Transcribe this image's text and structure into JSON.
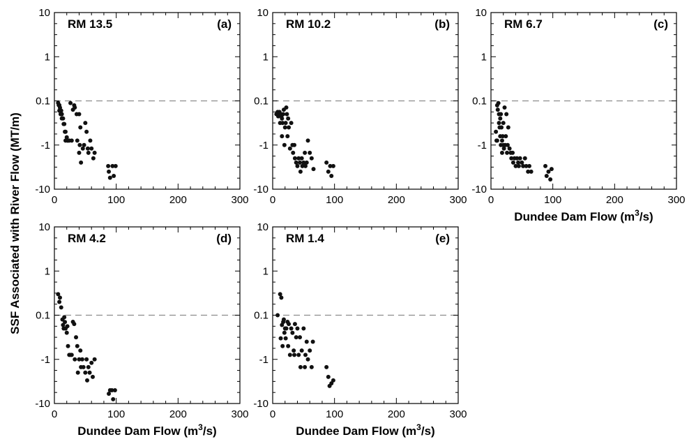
{
  "figure": {
    "ylabel": "SSF Associated with River Flow (MT/m)",
    "xlabel_main": "Dundee Dam Flow (m",
    "xlabel_sup": "3",
    "xlabel_tail": "/s)"
  },
  "chart_data": [
    {
      "type": "scatter",
      "site": "RM 13.5",
      "letter": "(a)",
      "xlim": [
        0,
        300
      ],
      "x_ticks": [
        "0",
        "100",
        "200",
        "300"
      ],
      "y_ticks": [
        "10",
        "1",
        "0.1",
        "-1",
        "-10"
      ],
      "y_scale": "symmetric log (10, 1, 0.1, -1, -10)",
      "reference_line": "dashed at 0.1",
      "show_xlabel": false,
      "points": [
        [
          6,
          0.09
        ],
        [
          7,
          0.08
        ],
        [
          8,
          0.08
        ],
        [
          8,
          0.06
        ],
        [
          9,
          0.07
        ],
        [
          10,
          0.05
        ],
        [
          10,
          0.06
        ],
        [
          11,
          0.06
        ],
        [
          12,
          0.04
        ],
        [
          12,
          0.05
        ],
        [
          13,
          0.04
        ],
        [
          14,
          0.04
        ],
        [
          15,
          0.03
        ],
        [
          16,
          0.03
        ],
        [
          17,
          0.02
        ],
        [
          18,
          0.02
        ],
        [
          18,
          0.01
        ],
        [
          20,
          0.015
        ],
        [
          21,
          0.01
        ],
        [
          22,
          0.01
        ],
        [
          24,
          0.005
        ],
        [
          26,
          -0.05
        ],
        [
          28,
          0.003
        ],
        [
          30,
          -0.2
        ],
        [
          32,
          -0.1
        ],
        [
          33,
          -0.15
        ],
        [
          36,
          -0.3
        ],
        [
          37,
          -0.9
        ],
        [
          40,
          -0.3
        ],
        [
          40,
          -1.5
        ],
        [
          41,
          -1.0
        ],
        [
          42,
          -0.6
        ],
        [
          43,
          -2.5
        ],
        [
          46,
          -1.2
        ],
        [
          48,
          -1.0
        ],
        [
          50,
          -0.5
        ],
        [
          52,
          -0.7
        ],
        [
          54,
          -1.2
        ],
        [
          55,
          -1.5
        ],
        [
          58,
          -0.9
        ],
        [
          60,
          -1.2
        ],
        [
          63,
          -2.0
        ],
        [
          65,
          -1.5
        ],
        [
          87,
          -3.0
        ],
        [
          88,
          -4.0
        ],
        [
          90,
          -5.5
        ],
        [
          94,
          -3.0
        ],
        [
          96,
          -5.0
        ],
        [
          99,
          -3.0
        ]
      ]
    },
    {
      "type": "scatter",
      "site": "RM 10.2",
      "letter": "(b)",
      "xlim": [
        0,
        300
      ],
      "x_ticks": [
        "0",
        "100",
        "200",
        "300"
      ],
      "y_ticks": [
        "10",
        "1",
        "0.1",
        "-1",
        "-10"
      ],
      "y_scale": "symmetric log (10, 1, 0.1, -1, -10)",
      "reference_line": "dashed at 0.1",
      "show_xlabel": false,
      "points": [
        [
          6,
          -0.3
        ],
        [
          7,
          -0.3
        ],
        [
          8,
          -0.25
        ],
        [
          9,
          -0.35
        ],
        [
          10,
          -0.3
        ],
        [
          11,
          -0.25
        ],
        [
          12,
          -0.3
        ],
        [
          12,
          -0.5
        ],
        [
          13,
          -0.3
        ],
        [
          14,
          -0.35
        ],
        [
          15,
          -0.4
        ],
        [
          15,
          -0.8
        ],
        [
          16,
          -0.5
        ],
        [
          17,
          -0.3
        ],
        [
          18,
          -0.2
        ],
        [
          19,
          -1.0
        ],
        [
          20,
          -0.6
        ],
        [
          21,
          -0.5
        ],
        [
          22,
          -0.15
        ],
        [
          23,
          -0.3
        ],
        [
          24,
          -0.8
        ],
        [
          25,
          -0.4
        ],
        [
          26,
          -0.6
        ],
        [
          28,
          -1.2
        ],
        [
          30,
          -0.5
        ],
        [
          32,
          -1.0
        ],
        [
          33,
          -1.5
        ],
        [
          35,
          -1.0
        ],
        [
          36,
          -2.0
        ],
        [
          38,
          -2.5
        ],
        [
          40,
          -3.0
        ],
        [
          42,
          -2.0
        ],
        [
          44,
          -2.5
        ],
        [
          45,
          -4.0
        ],
        [
          47,
          -2.0
        ],
        [
          48,
          -3.0
        ],
        [
          50,
          -2.5
        ],
        [
          52,
          -1.5
        ],
        [
          53,
          -3.0
        ],
        [
          55,
          -2.5
        ],
        [
          57,
          -0.9
        ],
        [
          60,
          -1.5
        ],
        [
          63,
          -2.0
        ],
        [
          66,
          -3.5
        ],
        [
          87,
          -2.5
        ],
        [
          90,
          -4.0
        ],
        [
          93,
          -3.0
        ],
        [
          95,
          -5.0
        ],
        [
          98,
          -3.0
        ]
      ]
    },
    {
      "type": "scatter",
      "site": "RM 6.7",
      "letter": "(c)",
      "xlim": [
        0,
        300
      ],
      "x_ticks": [
        "0",
        "100",
        "200",
        "300"
      ],
      "y_ticks": [
        "10",
        "1",
        "0.1",
        "-1",
        "-10"
      ],
      "y_scale": "symmetric log (10, 1, 0.1, -1, -10)",
      "reference_line": "dashed at 0.1",
      "show_xlabel": true,
      "points": [
        [
          8,
          0.02
        ],
        [
          9,
          0.01
        ],
        [
          10,
          0.005
        ],
        [
          10,
          -0.1
        ],
        [
          11,
          -0.2
        ],
        [
          12,
          -0.05
        ],
        [
          13,
          -0.3
        ],
        [
          13,
          -0.5
        ],
        [
          14,
          -0.6
        ],
        [
          15,
          -0.4
        ],
        [
          15,
          -0.8
        ],
        [
          16,
          -0.3
        ],
        [
          16,
          -1.0
        ],
        [
          17,
          -0.6
        ],
        [
          18,
          -0.9
        ],
        [
          18,
          -1.5
        ],
        [
          19,
          -0.8
        ],
        [
          20,
          -1.0
        ],
        [
          20,
          -0.5
        ],
        [
          21,
          -1.2
        ],
        [
          22,
          -0.15
        ],
        [
          23,
          -1.0
        ],
        [
          24,
          -0.8
        ],
        [
          25,
          -0.3
        ],
        [
          26,
          -1.5
        ],
        [
          27,
          -1.0
        ],
        [
          28,
          -0.6
        ],
        [
          30,
          -1.2
        ],
        [
          32,
          -1.5
        ],
        [
          33,
          -2.0
        ],
        [
          35,
          -1.5
        ],
        [
          36,
          -2.5
        ],
        [
          38,
          -2.0
        ],
        [
          40,
          -3.0
        ],
        [
          42,
          -2.0
        ],
        [
          44,
          -2.5
        ],
        [
          45,
          -3.0
        ],
        [
          47,
          -2.0
        ],
        [
          50,
          -2.5
        ],
        [
          52,
          -3.0
        ],
        [
          55,
          -2.0
        ],
        [
          57,
          -3.0
        ],
        [
          60,
          -4.0
        ],
        [
          62,
          -3.0
        ],
        [
          65,
          -4.0
        ],
        [
          88,
          -3.0
        ],
        [
          90,
          -5.0
        ],
        [
          93,
          -4.0
        ],
        [
          96,
          -6.0
        ],
        [
          98,
          -3.5
        ]
      ]
    },
    {
      "type": "scatter",
      "site": "RM 4.2",
      "letter": "(d)",
      "xlim": [
        0,
        300
      ],
      "x_ticks": [
        "0",
        "100",
        "200",
        "300"
      ],
      "y_ticks": [
        "10",
        "1",
        "0.1",
        "-1",
        "-10"
      ],
      "y_scale": "symmetric log (10, 1, 0.1, -1, -10)",
      "reference_line": "dashed at 0.1",
      "show_xlabel": true,
      "points": [
        [
          6,
          0.3
        ],
        [
          8,
          0.2
        ],
        [
          9,
          0.25
        ],
        [
          11,
          0.15
        ],
        [
          13,
          0.08
        ],
        [
          14,
          0.06
        ],
        [
          15,
          0.05
        ],
        [
          16,
          0.09
        ],
        [
          17,
          0.07
        ],
        [
          18,
          -0.3
        ],
        [
          18,
          0.05
        ],
        [
          20,
          0.04
        ],
        [
          21,
          -0.25
        ],
        [
          22,
          0.02
        ],
        [
          24,
          0.01
        ],
        [
          26,
          0.01
        ],
        [
          28,
          0.005
        ],
        [
          30,
          -0.15
        ],
        [
          32,
          -0.2
        ],
        [
          33,
          -1.0
        ],
        [
          35,
          -0.5
        ],
        [
          37,
          -0.7
        ],
        [
          38,
          -2.0
        ],
        [
          40,
          -1.0
        ],
        [
          42,
          -0.8
        ],
        [
          43,
          -1.5
        ],
        [
          45,
          -1.0
        ],
        [
          47,
          -1.5
        ],
        [
          50,
          -2.0
        ],
        [
          52,
          -1.0
        ],
        [
          53,
          -3.0
        ],
        [
          55,
          -1.5
        ],
        [
          57,
          -2.0
        ],
        [
          60,
          -1.2
        ],
        [
          62,
          -2.5
        ],
        [
          65,
          -1.0
        ],
        [
          88,
          -6.0
        ],
        [
          90,
          -5.0
        ],
        [
          93,
          -5.0
        ],
        [
          95,
          -8.0
        ],
        [
          98,
          -5.0
        ]
      ]
    },
    {
      "type": "scatter",
      "site": "RM 1.4",
      "letter": "(e)",
      "xlim": [
        0,
        300
      ],
      "x_ticks": [
        "0",
        "100",
        "200",
        "300"
      ],
      "y_ticks": [
        "10",
        "1",
        "0.1",
        "-1",
        "-10"
      ],
      "y_scale": "symmetric log (10, 1, 0.1, -1, -10)",
      "reference_line": "dashed at 0.1",
      "show_xlabel": true,
      "points": [
        [
          8,
          0.1
        ],
        [
          12,
          0.3
        ],
        [
          13,
          0.03
        ],
        [
          14,
          0.25
        ],
        [
          15,
          0.06
        ],
        [
          16,
          0.02
        ],
        [
          17,
          0.07
        ],
        [
          18,
          0.08
        ],
        [
          19,
          0.04
        ],
        [
          20,
          0.05
        ],
        [
          21,
          0.03
        ],
        [
          22,
          -0.3
        ],
        [
          24,
          -0.15
        ],
        [
          25,
          0.02
        ],
        [
          26,
          -0.2
        ],
        [
          28,
          0.01
        ],
        [
          30,
          -0.3
        ],
        [
          32,
          -0.4
        ],
        [
          34,
          -0.8
        ],
        [
          35,
          0.01
        ],
        [
          36,
          -0.2
        ],
        [
          38,
          -0.5
        ],
        [
          40,
          -0.3
        ],
        [
          42,
          -0.9
        ],
        [
          44,
          -0.5
        ],
        [
          45,
          -1.5
        ],
        [
          47,
          -0.8
        ],
        [
          50,
          -0.3
        ],
        [
          52,
          -1.5
        ],
        [
          53,
          -0.9
        ],
        [
          55,
          -0.6
        ],
        [
          57,
          -1.0
        ],
        [
          60,
          -0.8
        ],
        [
          63,
          -1.5
        ],
        [
          65,
          -0.6
        ],
        [
          87,
          -1.5
        ],
        [
          90,
          -2.5
        ],
        [
          92,
          -4.0
        ],
        [
          95,
          -3.5
        ],
        [
          98,
          -3.0
        ]
      ]
    }
  ]
}
